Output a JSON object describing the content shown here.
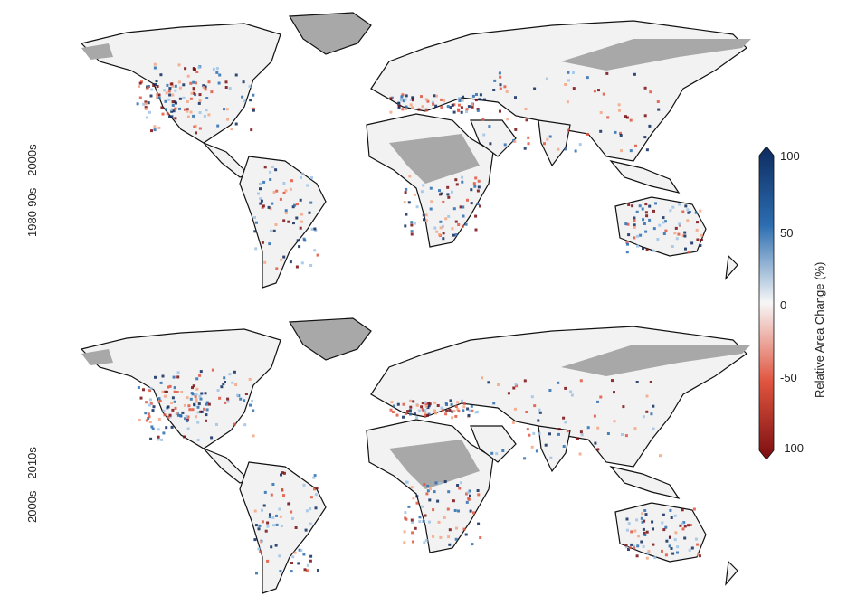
{
  "panels": [
    {
      "label": "1980-90s—2000s"
    },
    {
      "label": "2000s—2010s"
    }
  ],
  "colorbar": {
    "title": "Relative Area Change (%)",
    "ticks": [
      "100",
      "50",
      "0",
      "-50",
      "-100"
    ],
    "colors": {
      "max": "#0d2a5e",
      "pos": "#2c6db0",
      "zero": "#f7f7f7",
      "neg": "#e0553f",
      "min": "#7a0d10"
    }
  },
  "colors": {
    "land": "#f2f2f2",
    "nodata": "#a8a8a8",
    "coast": "#111111"
  }
}
